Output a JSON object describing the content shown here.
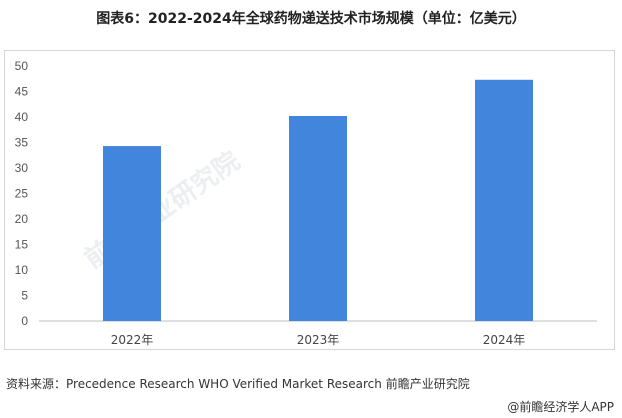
{
  "chart_data": {
    "type": "bar",
    "title": "图表6：2022-2024年全球药物递送技术市场规模（单位：亿美元）",
    "categories": [
      "2022年",
      "2023年",
      "2024年"
    ],
    "values": [
      34.3,
      40.2,
      47.3
    ],
    "ylim": [
      0,
      50
    ],
    "yticks": [
      0,
      5,
      10,
      15,
      20,
      25,
      30,
      35,
      40,
      45,
      50
    ],
    "grid": false,
    "bar_color": "#4285dc"
  },
  "source": "资料来源：Precedence Research WHO Verified Market Research 前瞻产业研究院",
  "footer": "@前瞻经济学人APP",
  "watermark": "前瞻产业研究院"
}
